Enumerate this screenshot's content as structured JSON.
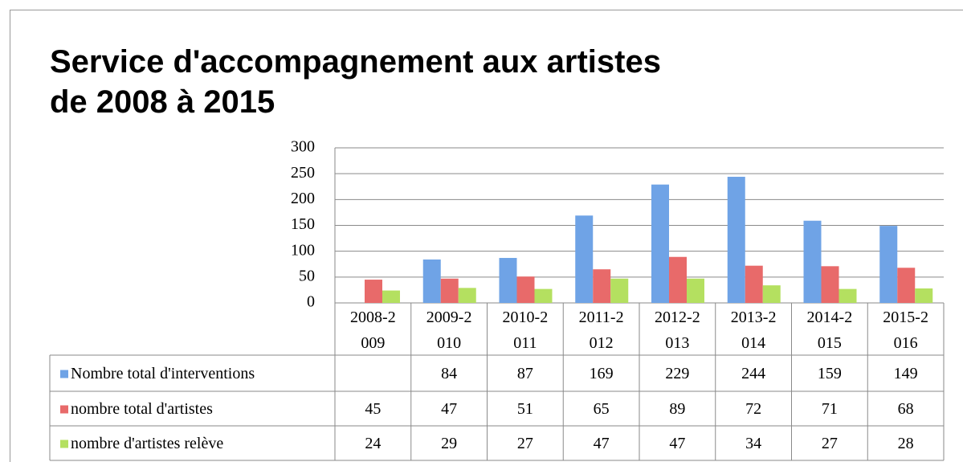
{
  "chart_data": {
    "type": "bar",
    "title": "Service d'accompagnement aux artistes de 2008 à 2015",
    "categories": [
      "2008-2009",
      "2009-2010",
      "2010-2011",
      "2011-2012",
      "2012-2013",
      "2013-2014",
      "2014-2015",
      "2015-2016"
    ],
    "series": [
      {
        "name": "Nombre total d'interventions",
        "color": "#6fa3e6",
        "values": [
          null,
          84,
          87,
          169,
          229,
          244,
          159,
          149
        ]
      },
      {
        "name": "nombre total d'artistes",
        "color": "#e86a6a",
        "values": [
          45,
          47,
          51,
          65,
          89,
          72,
          71,
          68
        ]
      },
      {
        "name": "nombre d'artistes relève",
        "color": "#b4e060",
        "values": [
          24,
          29,
          27,
          47,
          47,
          34,
          27,
          28
        ]
      }
    ],
    "ylim": [
      0,
      300
    ],
    "yticks": [
      0,
      50,
      100,
      150,
      200,
      250,
      300
    ],
    "grid": true
  }
}
